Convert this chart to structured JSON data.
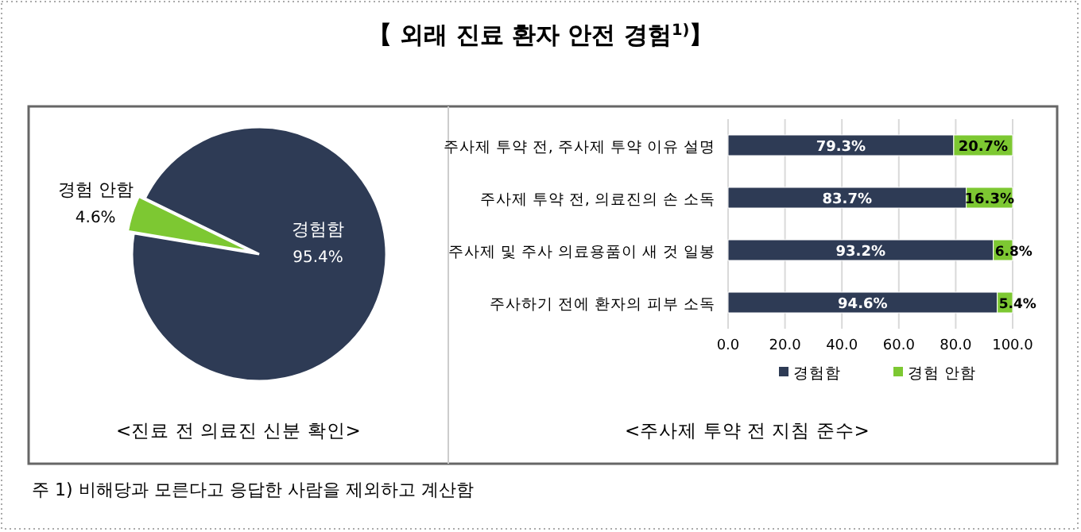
{
  "chart_data": [
    {
      "type": "pie",
      "title": "【 외래 진료 환자 안전 경험$^{1)}$】",
      "subtitle": "<진료 전 의료진 신분 확인>",
      "categories": [
        "경험함",
        "경험 안함"
      ],
      "values": [
        95.4,
        4.6
      ],
      "colors": [
        "#2e3b55",
        "#7dc832"
      ],
      "value_labels": [
        "95.4%",
        "4.6%"
      ]
    },
    {
      "type": "bar",
      "orientation": "horizontal",
      "stacked": true,
      "subtitle": "<주사제 투약 전 지침 준수>",
      "categories": [
        "주사제 투약 전, 주사제 투약 이유 설명",
        "주사제 투약 전, 의료진의 손 소독",
        "주사제 및 주사 의료용품이 새 것 일봉",
        "주사하기 전에 환자의 피부 소독"
      ],
      "series": [
        {
          "name": "경험함",
          "color": "#2e3b55",
          "values": [
            79.3,
            83.7,
            93.2,
            94.6
          ],
          "value_labels": [
            "79.3%",
            "83.7%",
            "93.2%",
            "94.6%"
          ]
        },
        {
          "name": "경험 안함",
          "color": "#7dc832",
          "values": [
            20.7,
            16.3,
            6.8,
            5.4
          ],
          "value_labels": [
            "20.7%",
            "16.3%",
            "6.8%",
            "5.4%"
          ]
        }
      ],
      "xlim": [
        0,
        100
      ],
      "xticks": [
        {
          "value": 0,
          "label": "0.0"
        },
        {
          "value": 20,
          "label": "20.0"
        },
        {
          "value": 40,
          "label": "40.0"
        },
        {
          "value": 60,
          "label": "60.0"
        },
        {
          "value": 80,
          "label": "80.0"
        },
        {
          "value": 100,
          "label": "100.0"
        }
      ],
      "grid": "x",
      "legend": "bottom",
      "annotations": [
        "주 1) 비해당과 모른다고 응답한 사람을 제외하고 계산함"
      ]
    }
  ]
}
